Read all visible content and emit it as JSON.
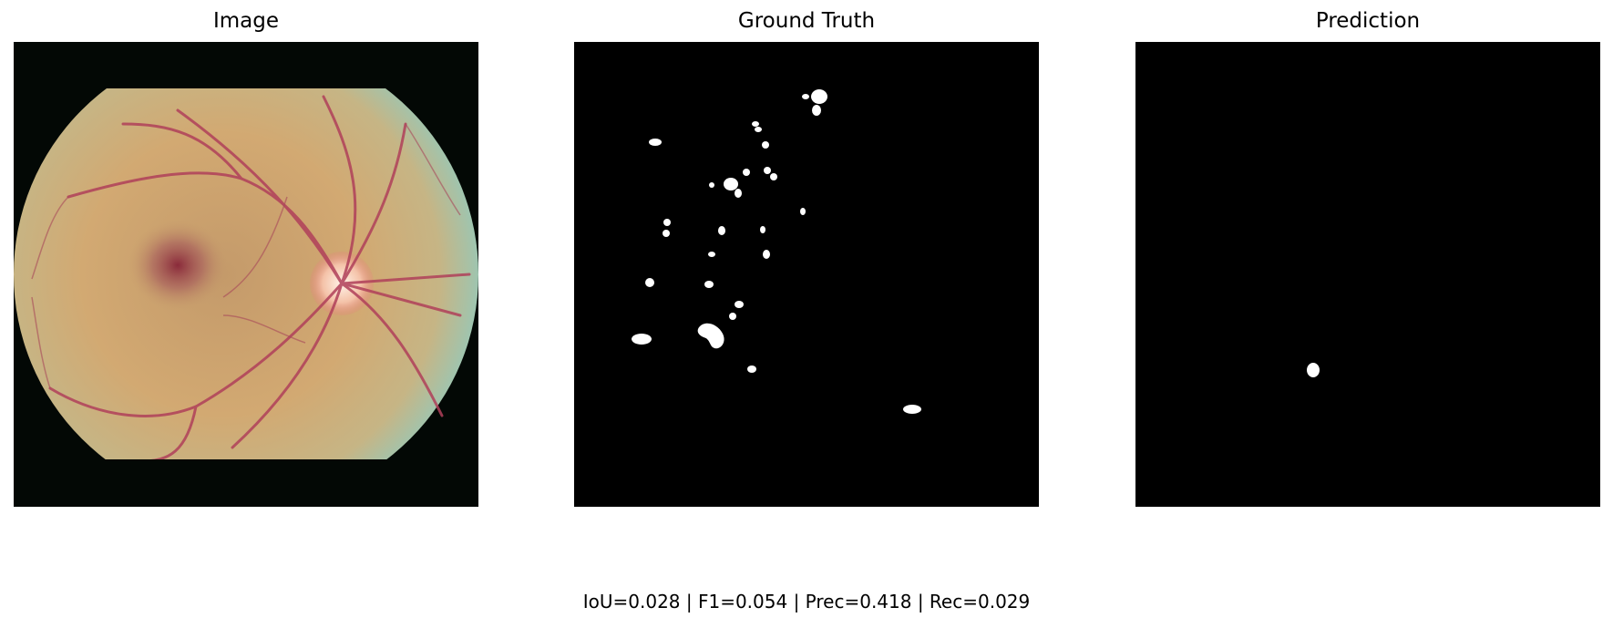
{
  "panels": {
    "image_title": "Image",
    "ground_truth_title": "Ground Truth",
    "prediction_title": "Prediction"
  },
  "metrics_text": "IoU=0.028 | F1=0.054 | Prec=0.418 | Rec=0.029"
}
